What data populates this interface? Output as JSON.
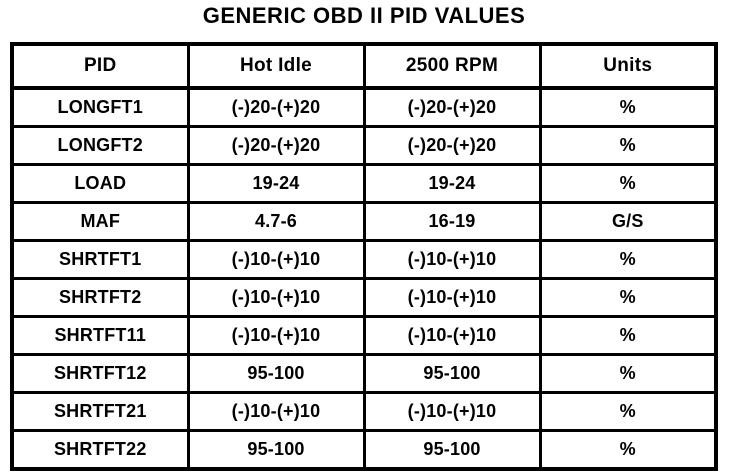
{
  "title": "GENERIC OBD II PID VALUES",
  "table": {
    "columns": [
      "PID",
      "Hot Idle",
      "2500 RPM",
      "Units"
    ],
    "rows": [
      [
        "LONGFT1",
        "(-)20-(+)20",
        "(-)20-(+)20",
        "%"
      ],
      [
        "LONGFT2",
        "(-)20-(+)20",
        "(-)20-(+)20",
        "%"
      ],
      [
        "LOAD",
        "19-24",
        "19-24",
        "%"
      ],
      [
        "MAF",
        "4.7-6",
        "16-19",
        "G/S"
      ],
      [
        "SHRTFT1",
        "(-)10-(+)10",
        "(-)10-(+)10",
        "%"
      ],
      [
        "SHRTFT2",
        "(-)10-(+)10",
        "(-)10-(+)10",
        "%"
      ],
      [
        "SHRTFT11",
        "(-)10-(+)10",
        "(-)10-(+)10",
        "%"
      ],
      [
        "SHRTFT12",
        "95-100",
        "95-100",
        "%"
      ],
      [
        "SHRTFT21",
        "(-)10-(+)10",
        "(-)10-(+)10",
        "%"
      ],
      [
        "SHRTFT22",
        "95-100",
        "95-100",
        "%"
      ]
    ]
  },
  "colors": {
    "ink": "#000000",
    "paper": "#ffffff"
  }
}
